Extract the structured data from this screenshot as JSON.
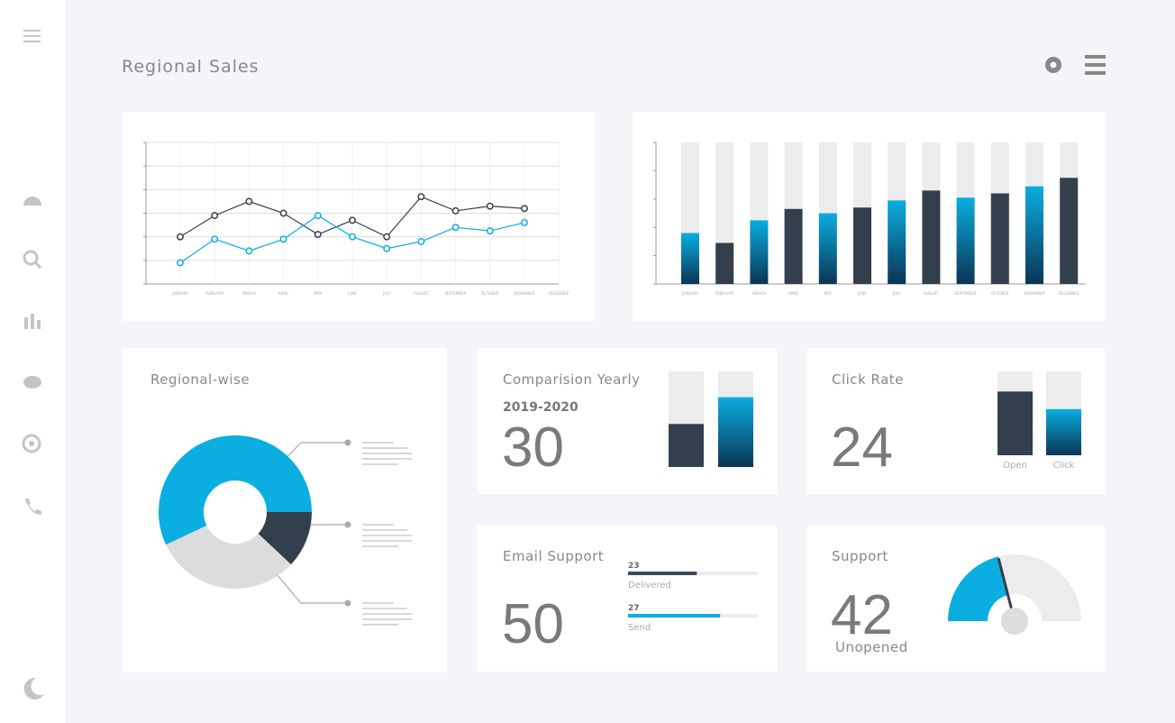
{
  "header": {
    "title": "Regional Sales"
  },
  "chart_data": [
    {
      "type": "line",
      "categories": [
        "JANUARY",
        "FEBRUARY",
        "MARCH",
        "APRIL",
        "MAY",
        "JUNE",
        "JULY",
        "AUGUST",
        "SEPTEMBER",
        "OCTOBER",
        "NOVEMBER",
        "DECEMBER"
      ],
      "series": [
        {
          "color": "#333f4d",
          "values": [
            2,
            2.9,
            3.5,
            3,
            2.1,
            2.7,
            2,
            3.7,
            3.1,
            3.3,
            3.2,
            null
          ]
        },
        {
          "color": "#0aaee0",
          "values": [
            0.9,
            1.9,
            1.4,
            1.9,
            2.9,
            2,
            1.5,
            1.8,
            2.4,
            2.25,
            2.6,
            null
          ]
        }
      ],
      "ylim": [
        0,
        6
      ],
      "yticks": [
        0,
        1,
        2,
        3,
        4,
        5,
        6
      ],
      "grid": true
    },
    {
      "type": "bar",
      "categories": [
        "JANUARY",
        "FEBRUARY",
        "MARCH",
        "APRIL",
        "MAY",
        "JUNE",
        "JULY",
        "AUGUST",
        "SEPTEMBER",
        "OCTOBER",
        "NOVEMBER",
        "DECEMBER"
      ],
      "values": [
        36,
        29,
        45,
        53,
        50,
        54,
        59,
        66,
        61,
        64,
        69,
        75
      ],
      "colors": [
        "#0aaee0",
        "#333f4d",
        "#0aaee0",
        "#333f4d",
        "#0aaee0",
        "#333f4d",
        "#0aaee0",
        "#333f4d",
        "#0aaee0",
        "#333f4d",
        "#0aaee0",
        "#333f4d"
      ],
      "ylim": [
        0,
        100
      ],
      "yticks": [
        0,
        20,
        40,
        60,
        80,
        100
      ]
    },
    {
      "type": "pie",
      "title": "Regional-wise",
      "values": [
        12,
        31,
        57
      ],
      "colors": [
        "#333f4d",
        "#dcdcdc",
        "#0aaee0"
      ]
    }
  ],
  "widgets": {
    "comparison": {
      "title": "Comparision Yearly",
      "period": "2019-2020",
      "value": 30,
      "values": [
        45,
        73
      ],
      "colors": [
        "#333f4d",
        "#0aaee0"
      ],
      "ylim": [
        0,
        100
      ]
    },
    "click_rate": {
      "title": "Click Rate",
      "value": 24,
      "categories": [
        "Open",
        "Click"
      ],
      "values": [
        76,
        55
      ],
      "colors": [
        "#333f4d",
        "#0aaee0"
      ],
      "ylim": [
        0,
        100
      ]
    },
    "email": {
      "title": "Email Support",
      "value": 50,
      "rows": [
        {
          "count": 23,
          "label": "Delivered",
          "progress": 53,
          "color": "#3a4c5a"
        },
        {
          "count": 27,
          "label": "Send",
          "progress": 71,
          "color": "#0aaee0"
        }
      ],
      "ylim": [
        0,
        100
      ]
    },
    "support": {
      "title": "Support",
      "value": 42,
      "label": "Unopened",
      "color": "#0aaee0",
      "ylim": [
        0,
        100
      ]
    }
  }
}
